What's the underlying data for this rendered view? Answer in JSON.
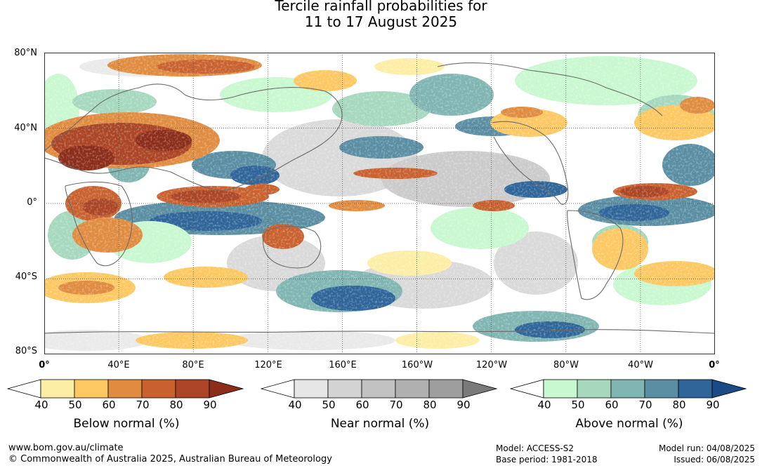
{
  "title": {
    "line1": "Tercile rainfall probabilities for",
    "line2": "11 to 17 August 2025"
  },
  "axes": {
    "lat_labels": [
      "80°N",
      "40°N",
      "0°",
      "40°S",
      "80°S"
    ],
    "lon_labels": [
      "0°",
      "40°E",
      "80°E",
      "120°E",
      "160°E",
      "160°W",
      "120°W",
      "80°W",
      "40°W",
      "0°"
    ]
  },
  "colorbars": [
    {
      "title": "Below normal (%)",
      "ticks": [
        "40",
        "50",
        "60",
        "70",
        "80",
        "90"
      ],
      "colors": [
        "#ffffff",
        "#fdeea5",
        "#fdc862",
        "#e08c40",
        "#c9612f",
        "#ab4525",
        "#8c2d1a"
      ]
    },
    {
      "title": "Near normal (%)",
      "ticks": [
        "40",
        "50",
        "60",
        "70",
        "80",
        "90"
      ],
      "colors": [
        "#ffffff",
        "#e6e6e6",
        "#d3d3d3",
        "#c2c2c2",
        "#b0b0b0",
        "#9e9e9e",
        "#7a7a7a"
      ]
    },
    {
      "title": "Above normal (%)",
      "ticks": [
        "40",
        "50",
        "60",
        "70",
        "80",
        "90"
      ],
      "colors": [
        "#ffffff",
        "#c8f8cf",
        "#a5d8bd",
        "#80b5b2",
        "#5a8ea3",
        "#2f6599",
        "#1a4b84"
      ]
    }
  ],
  "footer": {
    "site": "www.bom.gov.au/climate",
    "copyright": "© Commonwealth of Australia 2025, Australian Bureau of Meteorology",
    "model": "Model: ACCESS-S2",
    "base_period": "Base period: 1981-2018",
    "model_run": "Model run: 04/08/2025",
    "issued": "Issued: 06/08/2025"
  }
}
